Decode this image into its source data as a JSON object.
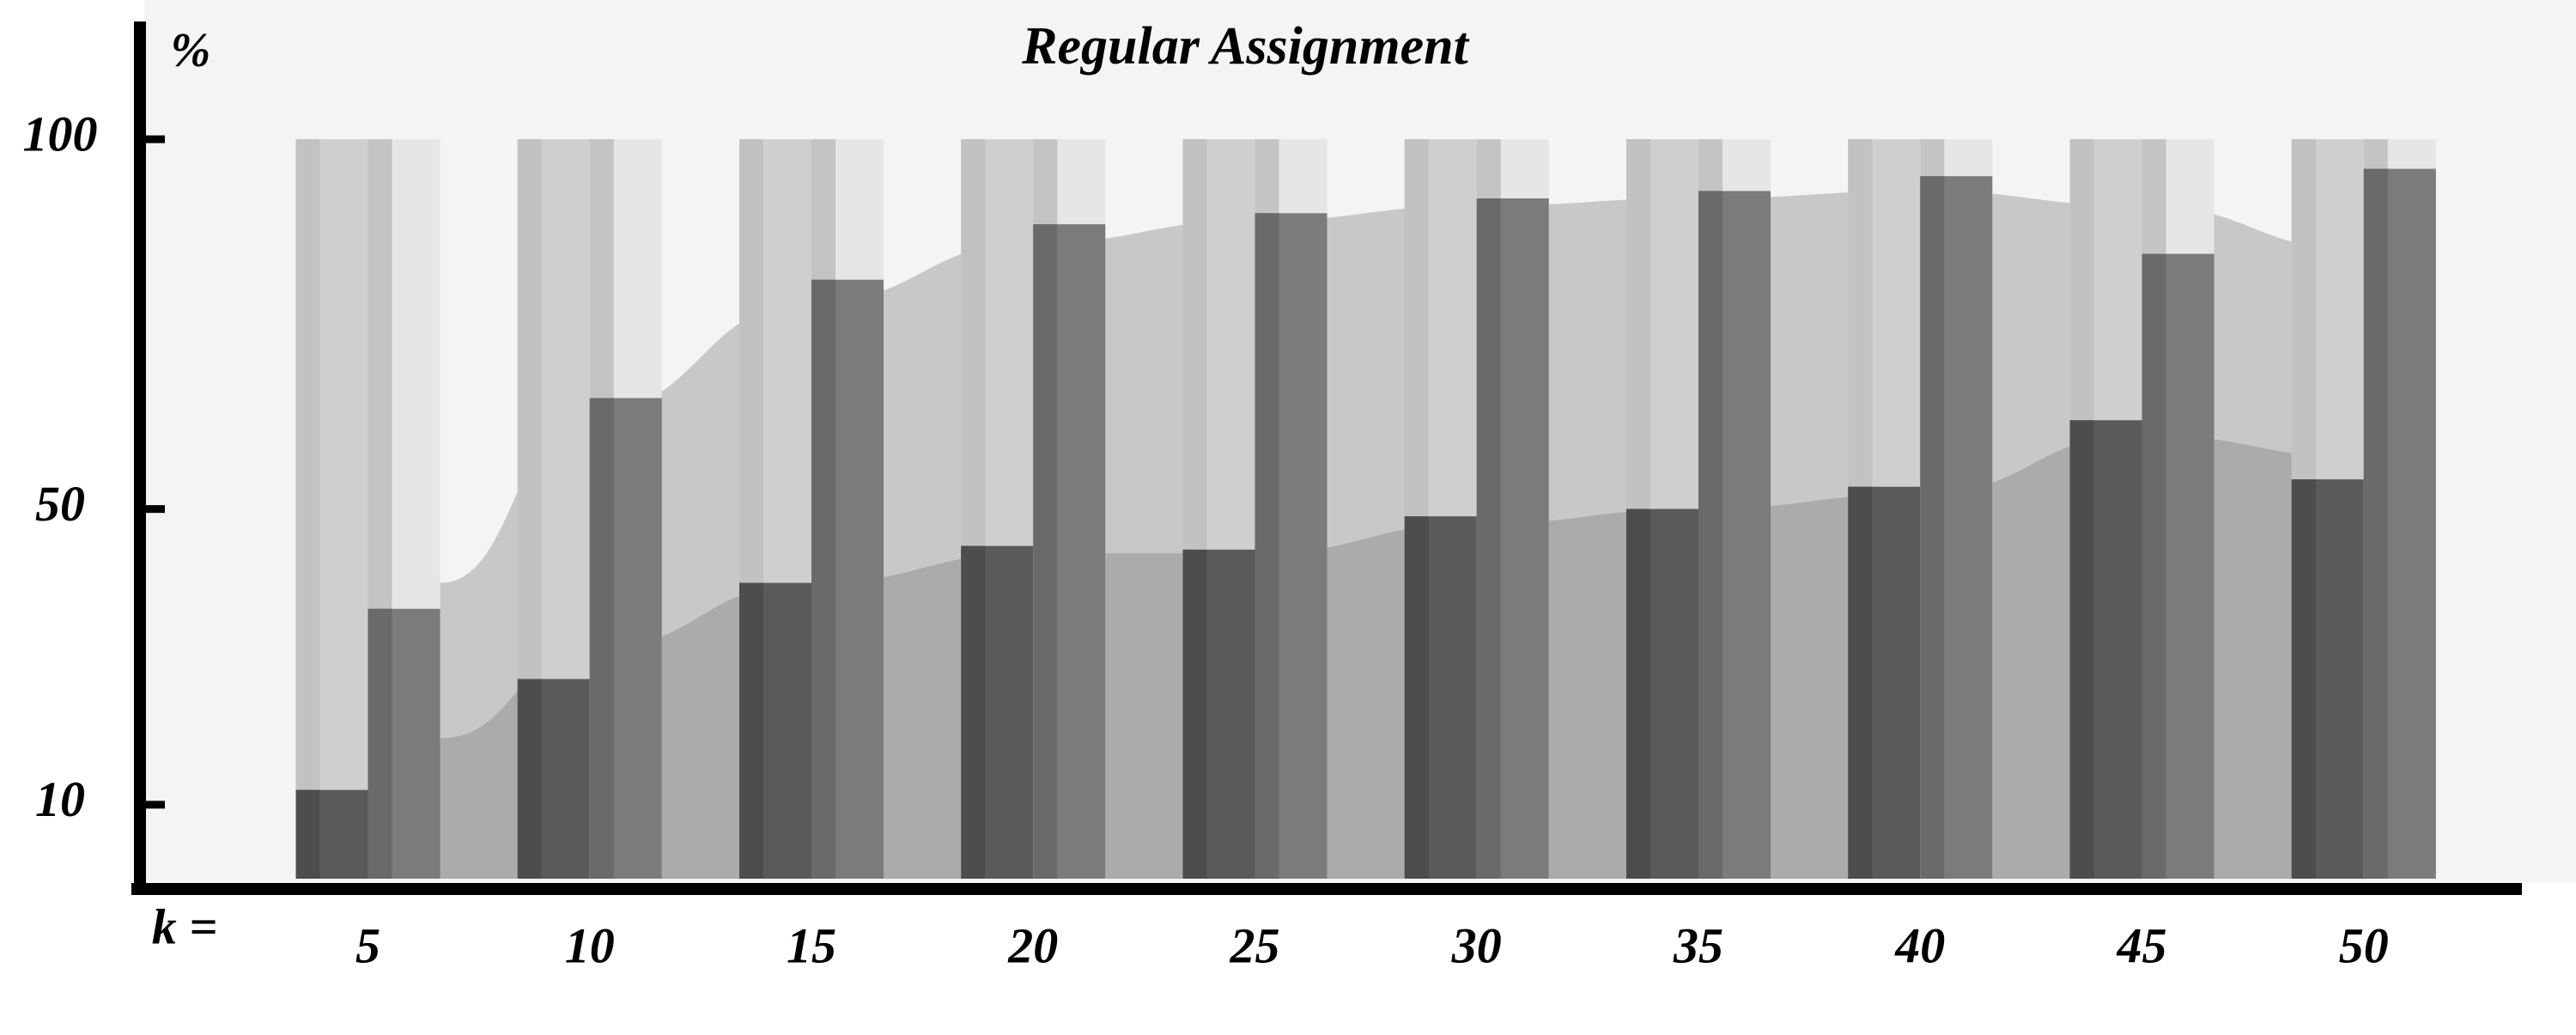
{
  "chart_data": {
    "type": "bar",
    "title": "Regular Assignment",
    "y_label": "%",
    "x_label": "k =",
    "categories": [
      "5",
      "10",
      "15",
      "20",
      "25",
      "30",
      "35",
      "40",
      "45",
      "50"
    ],
    "series": [
      {
        "color": "#5a5a5a",
        "values": [
          12,
          27,
          40,
          45,
          44.5,
          49,
          50,
          53,
          62,
          54
        ]
      },
      {
        "color": "#7b7b7b",
        "values": [
          36.5,
          65,
          81,
          88.5,
          90,
          92,
          93,
          95,
          84.5,
          96
        ]
      }
    ],
    "areas": [
      {
        "color": "#c8c8c8",
        "values": [
          40,
          63,
          78,
          86,
          89,
          91,
          92,
          93,
          91,
          85
        ]
      },
      {
        "color": "#ababab",
        "values": [
          19,
          31,
          40,
          44,
          44,
          48,
          50,
          52,
          60,
          57
        ]
      }
    ],
    "ylim": [
      0,
      115
    ],
    "yticks": [
      10,
      50,
      100
    ]
  }
}
